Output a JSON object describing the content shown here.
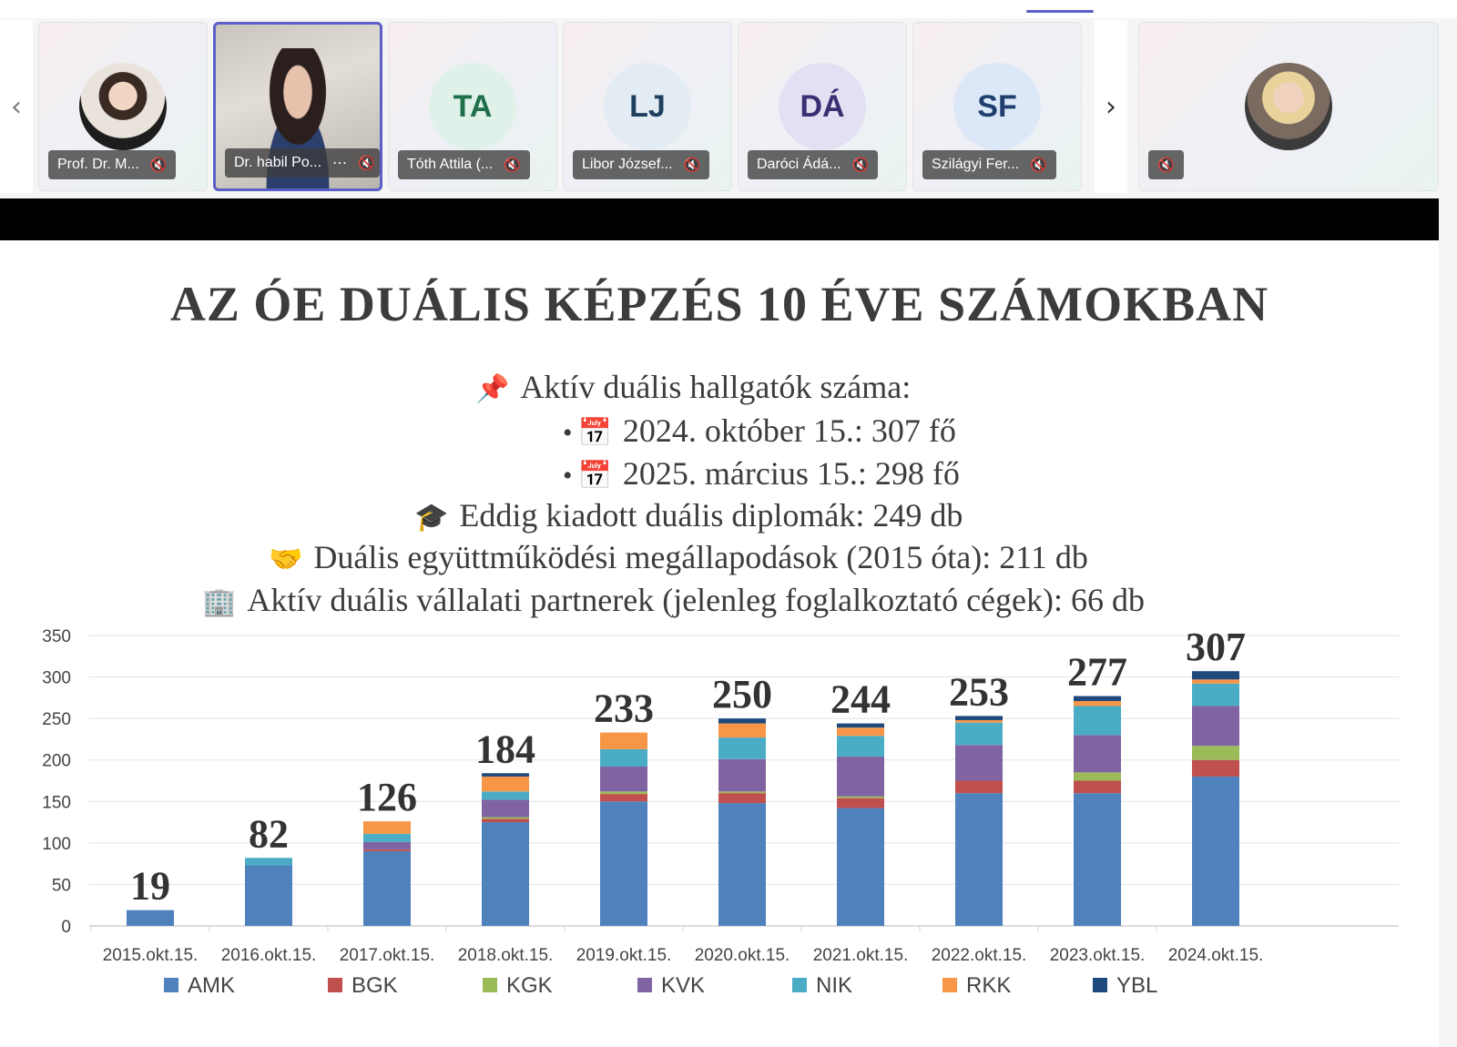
{
  "participants": [
    {
      "name": "Prof. Dr. M...",
      "initials": "",
      "kind": "photo",
      "active": false
    },
    {
      "name": "Dr. habil Po...",
      "initials": "",
      "kind": "video",
      "active": true,
      "more": "⋯"
    },
    {
      "name": "Tóth Attila (...",
      "initials": "TA",
      "kind": "initials",
      "avatar_color": "#dff1e9",
      "text_color": "#1f6f4a"
    },
    {
      "name": "Libor József...",
      "initials": "LJ",
      "kind": "initials",
      "avatar_color": "#e2ecf2",
      "text_color": "#1f3f5f"
    },
    {
      "name": "Daróci Ádá...",
      "initials": "DÁ",
      "kind": "initials",
      "avatar_color": "#e4dff2",
      "text_color": "#3b2f73"
    },
    {
      "name": "Szilágyi Fer...",
      "initials": "SF",
      "kind": "initials",
      "avatar_color": "#dce8f7",
      "text_color": "#1f3f6f"
    },
    {
      "name": "",
      "initials": "",
      "kind": "photo2",
      "active": false
    }
  ],
  "nav": {
    "prev": "‹",
    "next": "›"
  },
  "icons": {
    "mic_muted": "mic-off-icon",
    "pin": "pushpin-icon",
    "calendar": "calendar-icon",
    "cap": "graduation-cap-icon",
    "handshake": "handshake-icon",
    "office": "office-building-icon"
  },
  "slide": {
    "title": "AZ ÓE DUÁLIS KÉPZÉS 10 ÉVE SZÁMOKBAN",
    "line1": "Aktív duális hallgatók száma:",
    "bullet1": "2024. október 15.: 307 fő",
    "bullet2": "2025. március 15.: 298 fő",
    "line2": "Eddig kiadott duális diplomák: 249 db",
    "line3": "Duális együttműködési megállapodások (2015 óta): 211 db",
    "line4": "Aktív duális vállalati partnerek (jelenleg foglalkoztató cégek): 66 db"
  },
  "chart_data": {
    "type": "bar",
    "stacked": true,
    "categories": [
      "2015.okt.15.",
      "2016.okt.15.",
      "2017.okt.15.",
      "2018.okt.15.",
      "2019.okt.15.",
      "2020.okt.15.",
      "2021.okt.15.",
      "2022.okt.15.",
      "2023.okt.15.",
      "2024.okt.15."
    ],
    "totals": [
      19,
      82,
      126,
      184,
      233,
      250,
      244,
      253,
      277,
      307
    ],
    "ylim": [
      0,
      350
    ],
    "yticks": [
      0,
      50,
      100,
      150,
      200,
      250,
      300,
      350
    ],
    "grid": true,
    "legend_position": "bottom",
    "series": [
      {
        "name": "AMK",
        "color": "#4f81bd",
        "values": [
          19,
          73,
          90,
          125,
          150,
          148,
          142,
          160,
          160,
          180
        ]
      },
      {
        "name": "BGK",
        "color": "#c0504d",
        "values": [
          0,
          0,
          2,
          4,
          9,
          12,
          12,
          15,
          15,
          20
        ]
      },
      {
        "name": "KGK",
        "color": "#9bbb59",
        "values": [
          0,
          0,
          0,
          2,
          3,
          2,
          2,
          0,
          10,
          17
        ]
      },
      {
        "name": "KVK",
        "color": "#8064a2",
        "values": [
          0,
          0,
          9,
          21,
          30,
          39,
          48,
          43,
          45,
          48
        ]
      },
      {
        "name": "NIK",
        "color": "#4bacc6",
        "values": [
          0,
          9,
          10,
          10,
          21,
          26,
          25,
          27,
          35,
          27
        ]
      },
      {
        "name": "RKK",
        "color": "#f79646",
        "values": [
          0,
          0,
          15,
          18,
          20,
          17,
          10,
          3,
          6,
          5
        ]
      },
      {
        "name": "YBL",
        "color": "#1f497d",
        "values": [
          0,
          0,
          0,
          4,
          0,
          6,
          5,
          5,
          6,
          10
        ]
      }
    ]
  }
}
